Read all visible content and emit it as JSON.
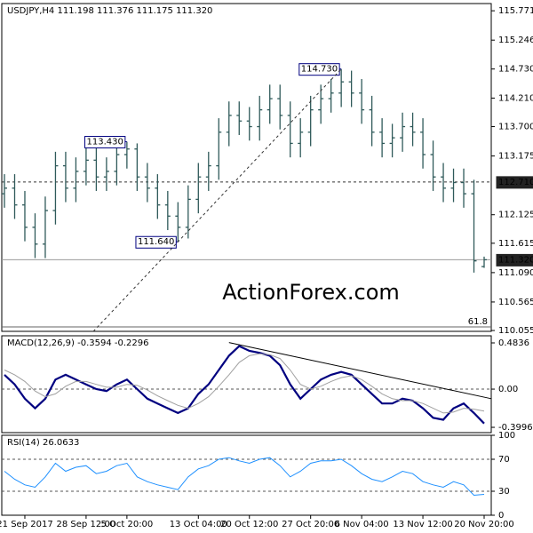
{
  "chart_data": [
    {
      "type": "ohlc",
      "title": "USDJPY,H4  111.198 111.376 111.175 111.320",
      "watermark": "ActionForex.com",
      "color": "#2f5a5a",
      "categories": [
        null,
        null,
        "21 Sep 2017",
        null,
        null,
        null,
        null,
        null,
        "28 Sep 12:00",
        null,
        null,
        null,
        "5 Oct 20:00",
        null,
        null,
        null,
        null,
        null,
        null,
        "13 Oct 04:00",
        null,
        null,
        null,
        null,
        "20 Oct 12:00",
        null,
        null,
        null,
        null,
        null,
        "27 Oct 20:00",
        null,
        null,
        null,
        null,
        "6 Nov 04:00",
        null,
        null,
        null,
        null,
        null,
        "13 Nov 12:00",
        null,
        null,
        null,
        null,
        null,
        "20 Nov 20:00"
      ],
      "open": [
        112.5,
        112.6,
        112.3,
        111.9,
        111.6,
        112.2,
        113.0,
        112.6,
        112.9,
        113.1,
        112.8,
        112.9,
        113.2,
        113.3,
        112.8,
        112.6,
        112.3,
        112.1,
        111.9,
        112.4,
        112.8,
        113.0,
        113.6,
        113.9,
        113.8,
        113.7,
        114.0,
        114.2,
        113.9,
        113.4,
        113.6,
        114.0,
        114.2,
        114.3,
        114.5,
        114.3,
        114.0,
        113.6,
        113.4,
        113.5,
        113.7,
        113.6,
        113.2,
        112.8,
        112.6,
        112.7,
        112.5,
        111.198
      ],
      "high": [
        112.85,
        112.85,
        112.55,
        112.15,
        112.45,
        113.25,
        113.25,
        113.15,
        113.35,
        113.35,
        113.15,
        113.38,
        113.43,
        113.4,
        113.05,
        112.85,
        112.55,
        112.35,
        112.65,
        113.05,
        113.25,
        113.85,
        114.15,
        114.15,
        114.05,
        114.25,
        114.45,
        114.45,
        114.15,
        113.85,
        114.25,
        114.45,
        114.55,
        114.73,
        114.7,
        114.55,
        114.25,
        113.85,
        113.75,
        113.95,
        113.95,
        113.85,
        113.45,
        113.05,
        112.95,
        112.95,
        112.75,
        111.376
      ],
      "low": [
        112.25,
        112.05,
        111.65,
        111.35,
        111.35,
        111.95,
        112.35,
        112.35,
        112.65,
        112.55,
        112.55,
        112.65,
        112.95,
        112.55,
        112.35,
        112.05,
        111.85,
        111.64,
        111.7,
        112.15,
        112.55,
        112.75,
        113.35,
        113.55,
        113.45,
        113.45,
        113.75,
        113.65,
        113.15,
        113.15,
        113.35,
        113.75,
        113.95,
        114.05,
        114.05,
        113.75,
        113.35,
        113.15,
        113.15,
        113.25,
        113.35,
        112.95,
        112.55,
        112.35,
        112.35,
        112.25,
        111.09,
        111.175
      ],
      "close": [
        112.6,
        112.3,
        111.9,
        111.6,
        112.2,
        113.0,
        112.6,
        112.9,
        113.1,
        112.8,
        112.9,
        113.2,
        113.3,
        112.8,
        112.6,
        112.3,
        112.1,
        111.9,
        112.4,
        112.8,
        113.0,
        113.6,
        113.9,
        113.8,
        113.7,
        114.0,
        114.2,
        113.9,
        113.4,
        113.6,
        114.0,
        114.2,
        114.3,
        114.5,
        114.3,
        114.0,
        113.6,
        113.4,
        113.5,
        113.7,
        113.6,
        113.2,
        112.8,
        112.6,
        112.7,
        112.5,
        111.3,
        111.32
      ],
      "ylim": [
        110.04,
        115.9
      ],
      "yticks": [
        115.771,
        115.246,
        {
          "value": 114.73,
          "label": "114.730"
        },
        {
          "value": 114.21,
          "label": "114.210"
        },
        {
          "value": 113.7,
          "label": "113.700"
        },
        113.175,
        112.125,
        111.615,
        {
          "value": 111.09,
          "label": "111.090"
        },
        110.565,
        110.055
      ],
      "levels": [
        {
          "value": 112.71,
          "label": "112.710",
          "style": "dashed"
        },
        {
          "value": 111.32,
          "label": "111.320",
          "style": "solid"
        }
      ],
      "fib": {
        "value": 110.12,
        "label": "61.8"
      },
      "annotations": [
        {
          "value": 113.43,
          "label": "113.430"
        },
        {
          "value": 114.73,
          "label": "114.730"
        },
        {
          "value": 111.64,
          "label": "111.640"
        }
      ]
    },
    {
      "type": "line",
      "title": "MACD(12,26,9) -0.3594 -0.2296",
      "series": [
        {
          "color": "#000080",
          "width": 2.2,
          "values": [
            0.15,
            0.05,
            -0.1,
            -0.2,
            -0.1,
            0.1,
            0.15,
            0.1,
            0.05,
            0.0,
            -0.02,
            0.05,
            0.1,
            0.0,
            -0.1,
            -0.15,
            -0.2,
            -0.25,
            -0.2,
            -0.05,
            0.05,
            0.2,
            0.35,
            0.45,
            0.4,
            0.38,
            0.35,
            0.25,
            0.05,
            -0.1,
            0.0,
            0.1,
            0.15,
            0.18,
            0.15,
            0.05,
            -0.05,
            -0.15,
            -0.15,
            -0.1,
            -0.12,
            -0.2,
            -0.3,
            -0.32,
            -0.2,
            -0.15,
            -0.25,
            -0.3594
          ]
        },
        {
          "color": "#a0a0a0",
          "width": 1,
          "values": [
            0.2,
            0.15,
            0.08,
            -0.02,
            -0.08,
            -0.05,
            0.03,
            0.08,
            0.08,
            0.05,
            0.02,
            0.02,
            0.05,
            0.04,
            -0.01,
            -0.07,
            -0.12,
            -0.17,
            -0.2,
            -0.15,
            -0.08,
            0.03,
            0.15,
            0.28,
            0.35,
            0.37,
            0.36,
            0.32,
            0.2,
            0.05,
            0.0,
            0.03,
            0.08,
            0.12,
            0.14,
            0.1,
            0.03,
            -0.05,
            -0.1,
            -0.12,
            -0.12,
            -0.15,
            -0.2,
            -0.25,
            -0.24,
            -0.2,
            -0.21,
            -0.2296
          ]
        }
      ],
      "ylim": [
        -0.455,
        0.558
      ],
      "yticks": [
        0.4836,
        {
          "value": 0,
          "label": "0.00"
        },
        -0.3996
      ],
      "levels": [
        0
      ]
    },
    {
      "type": "line",
      "title": "RSI(14) 26.0633",
      "series": [
        {
          "color": "#1e90ff",
          "width": 1,
          "values": [
            55,
            45,
            38,
            35,
            48,
            65,
            55,
            60,
            62,
            52,
            55,
            62,
            65,
            48,
            42,
            38,
            35,
            32,
            48,
            58,
            62,
            70,
            72,
            68,
            65,
            70,
            72,
            62,
            48,
            55,
            65,
            68,
            68,
            70,
            62,
            52,
            45,
            42,
            48,
            55,
            52,
            42,
            38,
            35,
            42,
            38,
            25,
            26.0633
          ]
        }
      ],
      "ylim": [
        0,
        100
      ],
      "yticks": [
        100,
        70,
        30,
        0
      ],
      "levels": [
        70,
        30
      ]
    }
  ]
}
